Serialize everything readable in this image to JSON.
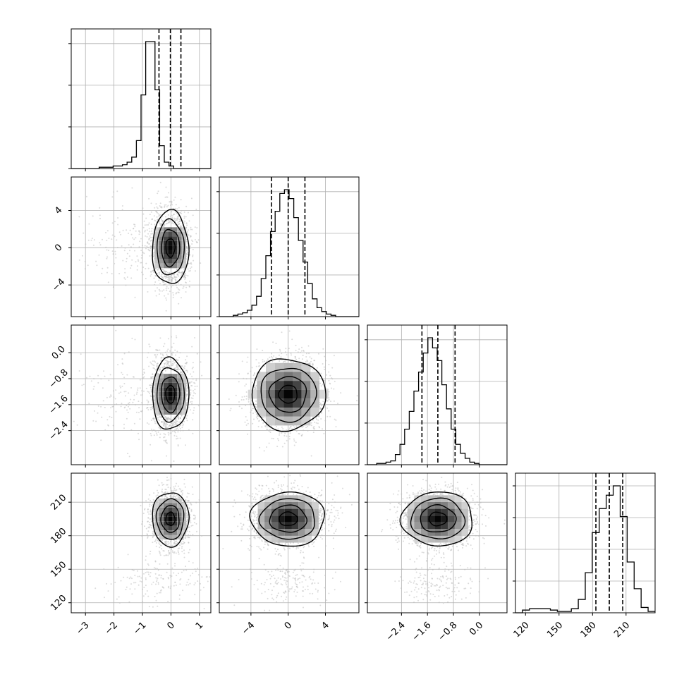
{
  "chart_data": {
    "type": "corner",
    "title": "",
    "grid": true,
    "colors": {
      "line": "#000000",
      "grid": "#b0b0b0",
      "scatter": "#bdbdbd",
      "quantile": "#000000"
    },
    "params": [
      {
        "id": "p0",
        "range": [
          -3.5,
          1.4
        ],
        "ticks": [
          -3,
          -2,
          -1,
          0,
          1
        ],
        "tick_labels": [
          "−3",
          "−2",
          "−1",
          "0",
          "1"
        ],
        "quantiles": [
          -0.42,
          -0.02,
          0.35
        ],
        "median": -0.02,
        "sigma": 0.29
      },
      {
        "id": "p1",
        "range": [
          -7.4,
          7.6
        ],
        "ticks": [
          -4,
          0,
          4
        ],
        "tick_labels": [
          "−4",
          "0",
          "4"
        ],
        "quantiles": [
          -1.8,
          0.0,
          1.8
        ],
        "median": 0.0,
        "sigma": 1.8
      },
      {
        "id": "p2",
        "range": [
          -3.45,
          0.85
        ],
        "ticks": [
          -2.4,
          -1.6,
          -0.8,
          0.0
        ],
        "tick_labels": [
          "−2.4",
          "−1.6",
          "−0.8",
          "0.0"
        ],
        "quantiles": [
          -1.77,
          -1.28,
          -0.75
        ],
        "median": -1.28,
        "sigma": 0.5
      },
      {
        "id": "p3",
        "range": [
          111,
          236
        ],
        "ticks": [
          120,
          150,
          180,
          210
        ],
        "tick_labels": [
          "120",
          "150",
          "180",
          "210"
        ],
        "quantiles": [
          183,
          195,
          207
        ],
        "median": 195,
        "sigma": 11
      }
    ],
    "histograms": [
      {
        "param": "p0",
        "y_ticks_count": 3,
        "counts": [
          0,
          0,
          0,
          0,
          0,
          0,
          1,
          1,
          1,
          2,
          2,
          3,
          5,
          9,
          22,
          58,
          100,
          100,
          62,
          18,
          5,
          2,
          0,
          0,
          0,
          0,
          0,
          0,
          0,
          0
        ]
      },
      {
        "param": "p1",
        "y_ticks_count": 3,
        "counts": [
          0,
          0,
          0,
          1,
          2,
          3,
          5,
          9,
          16,
          30,
          48,
          67,
          83,
          97,
          100,
          93,
          78,
          60,
          43,
          26,
          14,
          7,
          4,
          2,
          1,
          0,
          0,
          0,
          0,
          0
        ]
      },
      {
        "param": "p2",
        "y_ticks_count": 3,
        "counts": [
          0,
          0,
          1,
          1,
          2,
          3,
          8,
          16,
          28,
          42,
          58,
          73,
          88,
          100,
          92,
          82,
          63,
          44,
          28,
          16,
          9,
          5,
          2,
          1,
          0,
          0,
          0,
          0,
          0,
          0
        ]
      },
      {
        "param": "p3",
        "y_ticks_count": 4,
        "counts": [
          0,
          2,
          3,
          3,
          3,
          2,
          1,
          1,
          3,
          10,
          30,
          60,
          78,
          88,
          95,
          72,
          38,
          18,
          4,
          1
        ]
      }
    ],
    "panels_2d": [
      {
        "x": "p0",
        "y": "p1"
      },
      {
        "x": "p0",
        "y": "p2"
      },
      {
        "x": "p1",
        "y": "p2"
      },
      {
        "x": "p0",
        "y": "p3"
      },
      {
        "x": "p1",
        "y": "p3"
      },
      {
        "x": "p2",
        "y": "p3"
      }
    ]
  }
}
